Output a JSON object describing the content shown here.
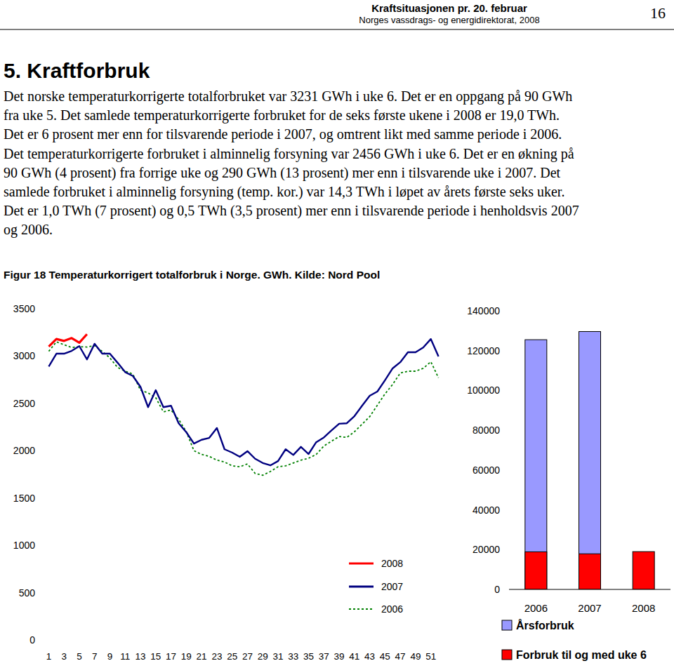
{
  "header": {
    "title": "Kraftsituasjonen pr. 20. februar",
    "publisher": "Norges vassdrags- og energidirektorat, 2008",
    "page": "16"
  },
  "section_title": "5. Kraftforbruk",
  "body": [
    "Det norske temperaturkorrigerte totalforbruket var 3231 GWh i uke 6. Det er en oppgang på 90 GWh",
    "fra uke 5. Det samlede temperaturkorrigerte forbruket for de seks første ukene i 2008 er 19,0 TWh.",
    "Det er 6 prosent mer enn for tilsvarende periode i 2007, og omtrent likt med samme periode i 2006.",
    "Det temperaturkorrigerte forbruket i alminnelig forsyning var 2456 GWh i uke 6. Det er en økning på",
    "90 GWh (4 prosent) fra forrige uke og 290 GWh (13 prosent) mer enn i tilsvarende uke i 2007. Det",
    "samlede forbruket i alminnelig forsyning (temp. kor.) var 14,3 TWh i løpet av årets første seks uker.",
    "Det er 1,0 TWh (7 prosent) og 0,5 TWh (3,5 prosent) mer enn i tilsvarende periode i henholdsvis 2007",
    "og 2006."
  ],
  "figure_caption": "Figur 18 Temperaturkorrigert totalforbruk i Norge. GWh. Kilde: Nord Pool",
  "chart_data": [
    {
      "type": "line",
      "categories": [
        "1",
        null,
        "3",
        null,
        "5",
        null,
        "7",
        null,
        "9",
        null,
        "11",
        null,
        "13",
        null,
        "15",
        null,
        "17",
        null,
        "19",
        null,
        "21",
        null,
        "23",
        null,
        "25",
        null,
        "27",
        null,
        "29",
        null,
        "31",
        null,
        "33",
        null,
        "35",
        null,
        "37",
        null,
        "39",
        null,
        "41",
        null,
        "43",
        null,
        "45",
        null,
        "47",
        null,
        "49",
        null,
        "51",
        null
      ],
      "series": [
        {
          "name": "2008",
          "color": "#ff0000",
          "line_style": "solid",
          "values": [
            3100,
            3180,
            3160,
            3190,
            3141,
            3231,
            null,
            null,
            null,
            null,
            null,
            null,
            null,
            null,
            null,
            null,
            null,
            null,
            null,
            null,
            null,
            null,
            null,
            null,
            null,
            null,
            null,
            null,
            null,
            null,
            null,
            null,
            null,
            null,
            null,
            null,
            null,
            null,
            null,
            null,
            null,
            null,
            null,
            null,
            null,
            null,
            null,
            null,
            null,
            null,
            null,
            null
          ]
        },
        {
          "name": "2007",
          "color": "#000080",
          "line_style": "solid",
          "values": [
            2890,
            3025,
            3025,
            3055,
            3105,
            2965,
            3130,
            3025,
            3025,
            2930,
            2830,
            2790,
            2675,
            2460,
            2640,
            2460,
            2475,
            2290,
            2195,
            2075,
            2115,
            2135,
            2240,
            2015,
            1980,
            1935,
            1995,
            1915,
            1870,
            1845,
            1890,
            2015,
            1955,
            2040,
            1965,
            2090,
            2140,
            2215,
            2285,
            2290,
            2365,
            2475,
            2580,
            2625,
            2745,
            2870,
            2935,
            3040,
            3040,
            3090,
            3180,
            2995
          ]
        },
        {
          "name": "2006",
          "color": "#008000",
          "line_style": "dotted",
          "values": [
            3050,
            3150,
            3120,
            3090,
            3100,
            3095,
            3110,
            3050,
            2980,
            2880,
            2840,
            2810,
            2640,
            2610,
            2560,
            2410,
            2430,
            2330,
            2200,
            2000,
            1960,
            1940,
            1900,
            1880,
            1840,
            1830,
            1860,
            1760,
            1740,
            1780,
            1830,
            1840,
            1870,
            1900,
            1920,
            1960,
            2050,
            2100,
            2150,
            2140,
            2200,
            2280,
            2360,
            2480,
            2600,
            2700,
            2820,
            2840,
            2840,
            2870,
            2940,
            2770
          ]
        }
      ],
      "ylim": [
        0,
        3500
      ],
      "yticks": [
        0,
        500,
        1000,
        1500,
        2000,
        2500,
        3000,
        3500
      ],
      "grid": false,
      "legend": "lower right"
    },
    {
      "type": "bar",
      "categories": [
        "2006",
        "2007",
        "2008"
      ],
      "series": [
        {
          "name": "Årsforbruk",
          "color": "#9999ff",
          "values": [
            125500,
            129600,
            null
          ]
        },
        {
          "name": "Forbruk til og med uke 6",
          "color": "#ff0000",
          "values": [
            18900,
            17900,
            19000
          ]
        }
      ],
      "stacked": false,
      "ylim": [
        0,
        140000
      ],
      "yticks": [
        0,
        20000,
        40000,
        60000,
        80000,
        100000,
        120000,
        140000
      ],
      "grid": false,
      "legend": "bottom"
    }
  ]
}
